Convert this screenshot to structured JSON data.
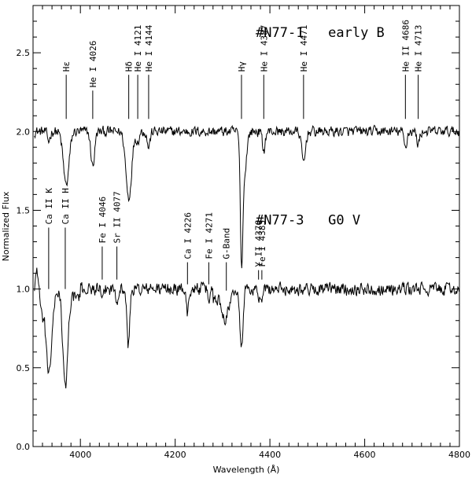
{
  "chart_data": {
    "type": "line",
    "xlabel": "Wavelength (Å)",
    "ylabel": "Normalized Flux",
    "xlim": [
      3900,
      4800
    ],
    "ylim": [
      0.0,
      2.8
    ],
    "x_ticks": [
      4000,
      4200,
      4400,
      4600,
      4800
    ],
    "y_ticks": [
      0.0,
      0.5,
      1.0,
      1.5,
      2.0,
      2.5
    ],
    "grid": false,
    "legend": "none",
    "series": [
      {
        "name": "#N77-1 early B",
        "continuum": 2.0,
        "features": [
          {
            "x": 3933,
            "depth": 0.06,
            "width": 3
          },
          {
            "x": 3970,
            "depth": 0.34,
            "width": 6
          },
          {
            "x": 4026,
            "depth": 0.22,
            "width": 4
          },
          {
            "x": 4102,
            "depth": 0.42,
            "width": 6
          },
          {
            "x": 4121,
            "depth": 0.06,
            "width": 3
          },
          {
            "x": 4144,
            "depth": 0.1,
            "width": 3
          },
          {
            "x": 4340,
            "depth": 0.68,
            "width": 2.5
          },
          {
            "x": 4345,
            "depth": 0.3,
            "width": 5
          },
          {
            "x": 4387,
            "depth": 0.12,
            "width": 3
          },
          {
            "x": 4471,
            "depth": 0.2,
            "width": 4
          },
          {
            "x": 4686,
            "depth": 0.1,
            "width": 3
          },
          {
            "x": 4713,
            "depth": 0.08,
            "width": 3
          }
        ]
      },
      {
        "name": "#N77-3 G0 V",
        "continuum": 1.0,
        "features": [
          {
            "x": 3933,
            "depth": 0.52,
            "width": 7
          },
          {
            "x": 3968,
            "depth": 0.58,
            "width": 5
          },
          {
            "x": 4046,
            "depth": 0.1,
            "width": 2
          },
          {
            "x": 4077,
            "depth": 0.07,
            "width": 2
          },
          {
            "x": 4101,
            "depth": 0.36,
            "width": 3
          },
          {
            "x": 4226,
            "depth": 0.18,
            "width": 2
          },
          {
            "x": 4271,
            "depth": 0.08,
            "width": 2
          },
          {
            "x": 4305,
            "depth": 0.12,
            "width": 6
          },
          {
            "x": 4340,
            "depth": 0.38,
            "width": 3
          },
          {
            "x": 4376,
            "depth": 0.06,
            "width": 2
          },
          {
            "x": 4383,
            "depth": 0.1,
            "width": 2
          }
        ]
      }
    ],
    "annotations": [
      {
        "group": "top",
        "label": "Hε",
        "x": 3970,
        "top": 2.36,
        "bottom": 2.08
      },
      {
        "group": "top",
        "label": "He I 4026",
        "x": 4026,
        "top": 2.26,
        "bottom": 2.08
      },
      {
        "group": "top",
        "label": "Hδ",
        "x": 4102,
        "top": 2.36,
        "bottom": 2.08
      },
      {
        "group": "top",
        "label": "He I 4121",
        "x": 4121,
        "top": 2.36,
        "bottom": 2.08
      },
      {
        "group": "top",
        "label": "He I 4144",
        "x": 4144,
        "top": 2.36,
        "bottom": 2.08
      },
      {
        "group": "top",
        "label": "Hγ",
        "x": 4340,
        "top": 2.36,
        "bottom": 2.08
      },
      {
        "group": "top",
        "label": "He I 4387",
        "x": 4387,
        "top": 2.36,
        "bottom": 2.08
      },
      {
        "group": "top",
        "label": "He I 4471",
        "x": 4471,
        "top": 2.36,
        "bottom": 2.08
      },
      {
        "group": "top",
        "label": "He II 4686",
        "x": 4686,
        "top": 2.36,
        "bottom": 2.08
      },
      {
        "group": "top",
        "label": "He I 4713",
        "x": 4713,
        "top": 2.36,
        "bottom": 2.08
      },
      {
        "group": "bottom",
        "label": "Ca II K",
        "x": 3933,
        "top": 1.39,
        "bottom": 1.0
      },
      {
        "group": "bottom",
        "label": "Ca II H",
        "x": 3968,
        "top": 1.39,
        "bottom": 1.0
      },
      {
        "group": "bottom",
        "label": "Fe I 4046",
        "x": 4046,
        "top": 1.27,
        "bottom": 1.06
      },
      {
        "group": "bottom",
        "label": "Sr II 4077",
        "x": 4077,
        "top": 1.27,
        "bottom": 1.06
      },
      {
        "group": "bottom",
        "label": "Ca I 4226",
        "x": 4226,
        "top": 1.17,
        "bottom": 1.03
      },
      {
        "group": "bottom",
        "label": "Fe I 4271",
        "x": 4271,
        "top": 1.17,
        "bottom": 1.03
      },
      {
        "group": "bottom",
        "label": "G-Band",
        "x": 4308,
        "top": 1.17,
        "bottom": 0.99
      },
      {
        "group": "bottom",
        "label": "Y II 4376",
        "x": 4376,
        "top": 1.12,
        "bottom": 1.06
      },
      {
        "group": "bottom",
        "label": "Fe I 4383",
        "x": 4383,
        "top": 1.12,
        "bottom": 1.06
      }
    ],
    "titles": [
      {
        "text": "#N77-1   early B",
        "x": 4370,
        "y": 2.6
      },
      {
        "text": "#N77-3   G0 V",
        "x": 4370,
        "y": 1.41
      }
    ]
  }
}
